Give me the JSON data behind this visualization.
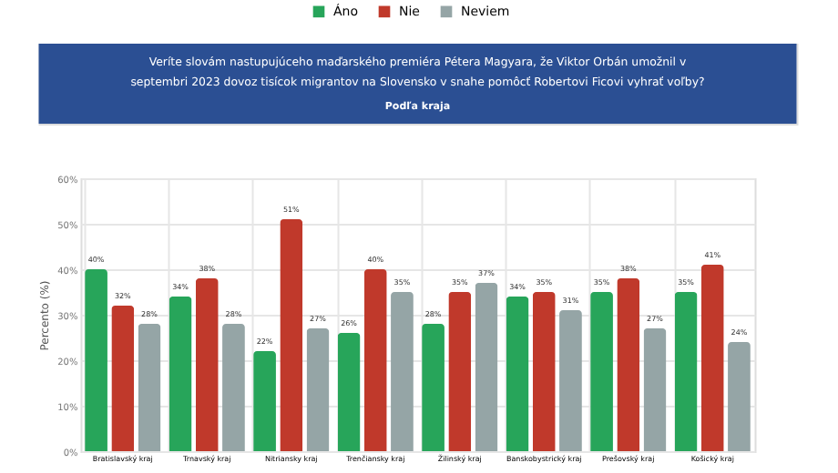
{
  "chart_data": {
    "type": "bar",
    "title": "Veríte slovám nastupujúceho maďarského premiéra Pétera Magyara, že Viktor Orbán umožnil v septembri 2023 dovoz tisícok migrantov na Slovensko v snahe pomôcť Robertovi Ficovi vyhrať voľby?",
    "subtitle": "Podľa kraja",
    "ylabel": "Percento (%)",
    "categories": [
      "Bratislavský kraj",
      "Trnavský kraj",
      "Nitriansky kraj",
      "Trenčiansky kraj",
      "Žilinský kraj",
      "Banskobystrický kraj",
      "Prešovský kraj",
      "Košický kraj"
    ],
    "series": [
      {
        "name": "Áno",
        "color": "#27a55a",
        "values": [
          40,
          34,
          22,
          26,
          28,
          34,
          35,
          35
        ],
        "value_labels": [
          "40%",
          "34%",
          "22%",
          "26%",
          "28%",
          "34%",
          "35%",
          "35%"
        ]
      },
      {
        "name": "Nie",
        "color": "#c0392b",
        "values": [
          32,
          38,
          51,
          40,
          35,
          35,
          38,
          41
        ],
        "value_labels": [
          "32%",
          "38%",
          "51%",
          "40%",
          "35%",
          "35%",
          "38%",
          "41%"
        ]
      },
      {
        "name": "Neviem",
        "color": "#95a5a6",
        "values": [
          28,
          28,
          27,
          35,
          37,
          31,
          27,
          24
        ],
        "value_labels": [
          "28%",
          "28%",
          "27%",
          "35%",
          "37%",
          "31%",
          "27%",
          "24%"
        ]
      }
    ],
    "ylim": [
      0,
      60
    ],
    "yticks": [
      {
        "value": 0,
        "label": "0%"
      },
      {
        "value": 10,
        "label": "10%"
      },
      {
        "value": 20,
        "label": "20%"
      },
      {
        "value": 30,
        "label": "30%"
      },
      {
        "value": 40,
        "label": "40%"
      },
      {
        "value": 50,
        "label": "50%"
      },
      {
        "value": 60,
        "label": "60%"
      }
    ],
    "grid": true,
    "legend": "top"
  }
}
